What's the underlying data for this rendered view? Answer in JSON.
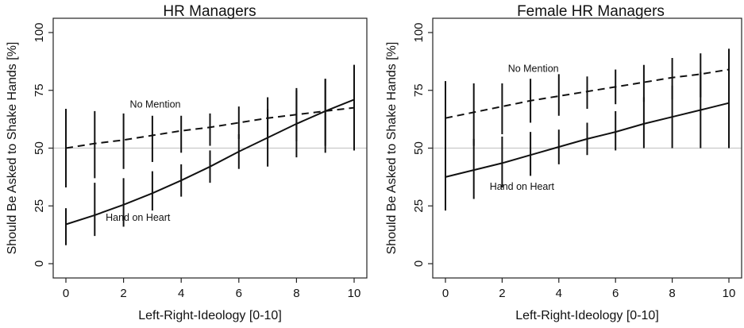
{
  "chart_data": [
    {
      "type": "line",
      "title": "HR Managers",
      "xlabel": "Left-Right-Ideology [0-10]",
      "ylabel": "Should Be Asked to Shake Hands [%]",
      "xlim": [
        0,
        10
      ],
      "ylim": [
        0,
        100
      ],
      "xticks": [
        0,
        2,
        4,
        6,
        8,
        10
      ],
      "yticks": [
        0,
        25,
        50,
        75,
        100
      ],
      "reference_line": 50,
      "grid": false,
      "x": [
        0,
        1,
        2,
        3,
        4,
        5,
        6,
        7,
        8,
        9,
        10
      ],
      "series": [
        {
          "name": "No Mention",
          "style": "dashed",
          "values": [
            50,
            52,
            53.5,
            55.5,
            57.5,
            59,
            61,
            63,
            64.5,
            66,
            67.5
          ],
          "ci_low": [
            33,
            37,
            41,
            44,
            48,
            51,
            54,
            55,
            53,
            51,
            49
          ],
          "ci_high": [
            67,
            66,
            65,
            64,
            64,
            65,
            68,
            72,
            76,
            80,
            86
          ]
        },
        {
          "name": "Hand on Heart",
          "style": "solid",
          "values": [
            17,
            21,
            25.5,
            30.5,
            36,
            42,
            48.5,
            54.5,
            60.5,
            66,
            71
          ],
          "ci_low": [
            8,
            12,
            16,
            23,
            29,
            35,
            41,
            42,
            46,
            48,
            49
          ],
          "ci_high": [
            24,
            35,
            37,
            40,
            43,
            49,
            56,
            67,
            75,
            80,
            86
          ]
        }
      ],
      "annotations": [
        {
          "text": "No Mention",
          "x": 3.1,
          "y": 67.5
        },
        {
          "text": "Hand on Heart",
          "x": 2.5,
          "y": 18.5
        }
      ]
    },
    {
      "type": "line",
      "title": "Female HR Managers",
      "xlabel": "Left-Right-Ideology [0-10]",
      "ylabel": "Should Be Asked to Shake Hands [%]",
      "xlim": [
        0,
        10
      ],
      "ylim": [
        0,
        100
      ],
      "xticks": [
        0,
        2,
        4,
        6,
        8,
        10
      ],
      "yticks": [
        0,
        25,
        50,
        75,
        100
      ],
      "reference_line": 50,
      "grid": false,
      "x": [
        0,
        1,
        2,
        3,
        4,
        5,
        6,
        7,
        8,
        9,
        10
      ],
      "series": [
        {
          "name": "No Mention",
          "style": "dashed",
          "values": [
            63,
            65.5,
            68,
            70.5,
            72.5,
            74.5,
            76.5,
            78.5,
            80.5,
            82,
            84
          ],
          "ci_low": [
            47,
            51,
            56,
            61,
            64,
            67,
            69,
            70,
            71,
            72,
            73
          ],
          "ci_high": [
            79,
            78,
            78,
            80,
            82,
            81,
            84,
            86,
            89,
            91,
            93
          ]
        },
        {
          "name": "Hand on Heart",
          "style": "solid",
          "values": [
            37.5,
            40.5,
            43.5,
            47,
            50.5,
            54,
            57,
            60.5,
            63.5,
            66.5,
            69.5
          ],
          "ci_low": [
            23,
            28,
            33,
            38,
            43,
            47,
            49,
            50,
            50,
            50,
            50
          ],
          "ci_high": [
            54,
            54,
            55,
            57,
            58,
            61,
            66,
            72,
            77,
            83,
            89
          ]
        }
      ],
      "annotations": [
        {
          "text": "No Mention",
          "x": 3.1,
          "y": 83
        },
        {
          "text": "Hand on Heart",
          "x": 2.7,
          "y": 32
        }
      ]
    }
  ]
}
